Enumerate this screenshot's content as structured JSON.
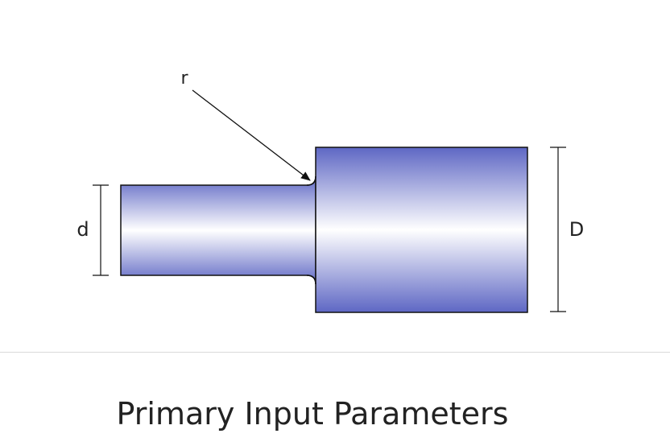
{
  "diagram": {
    "labels": {
      "small_diameter": "d",
      "large_diameter": "D",
      "fillet_radius": "r"
    },
    "colors": {
      "shaft_dark": "#5e67c4",
      "shaft_light": "#ffffff",
      "outline": "#111111"
    }
  },
  "section": {
    "title": "Primary Input Parameters"
  }
}
